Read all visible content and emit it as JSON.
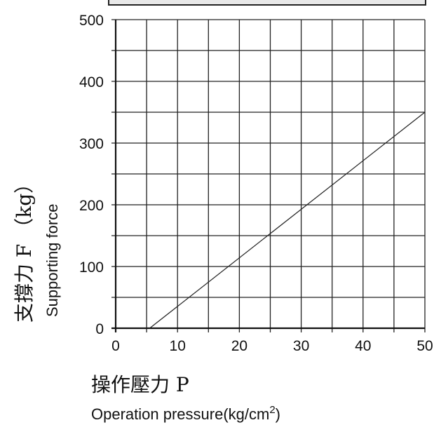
{
  "chart_data": {
    "type": "line",
    "x": [
      5.5,
      50
    ],
    "series": [
      {
        "values": [
          0,
          350
        ]
      }
    ],
    "xlim": [
      0,
      50
    ],
    "ylim": [
      0,
      500
    ],
    "x_ticks": [
      0,
      10,
      20,
      30,
      40,
      50
    ],
    "y_ticks": [
      0,
      100,
      200,
      300,
      400,
      500
    ],
    "x_tick_labels": [
      "0",
      "10",
      "20",
      "30",
      "40",
      "50"
    ],
    "y_tick_labels": [
      "0",
      "100",
      "200",
      "300",
      "400",
      "500"
    ],
    "xlabel": {
      "zh": "操作壓力 P",
      "en": "Operation pressure(kg/cm",
      "en_superscript": "2",
      "en_suffix": ")"
    },
    "ylabel": {
      "zh": "支撐力 F （kg）",
      "en": "Supporting force"
    },
    "grid": true,
    "colors": {
      "line": "#222222",
      "grid": "#222222",
      "top_bar_fill": "#e8e8e8"
    }
  }
}
